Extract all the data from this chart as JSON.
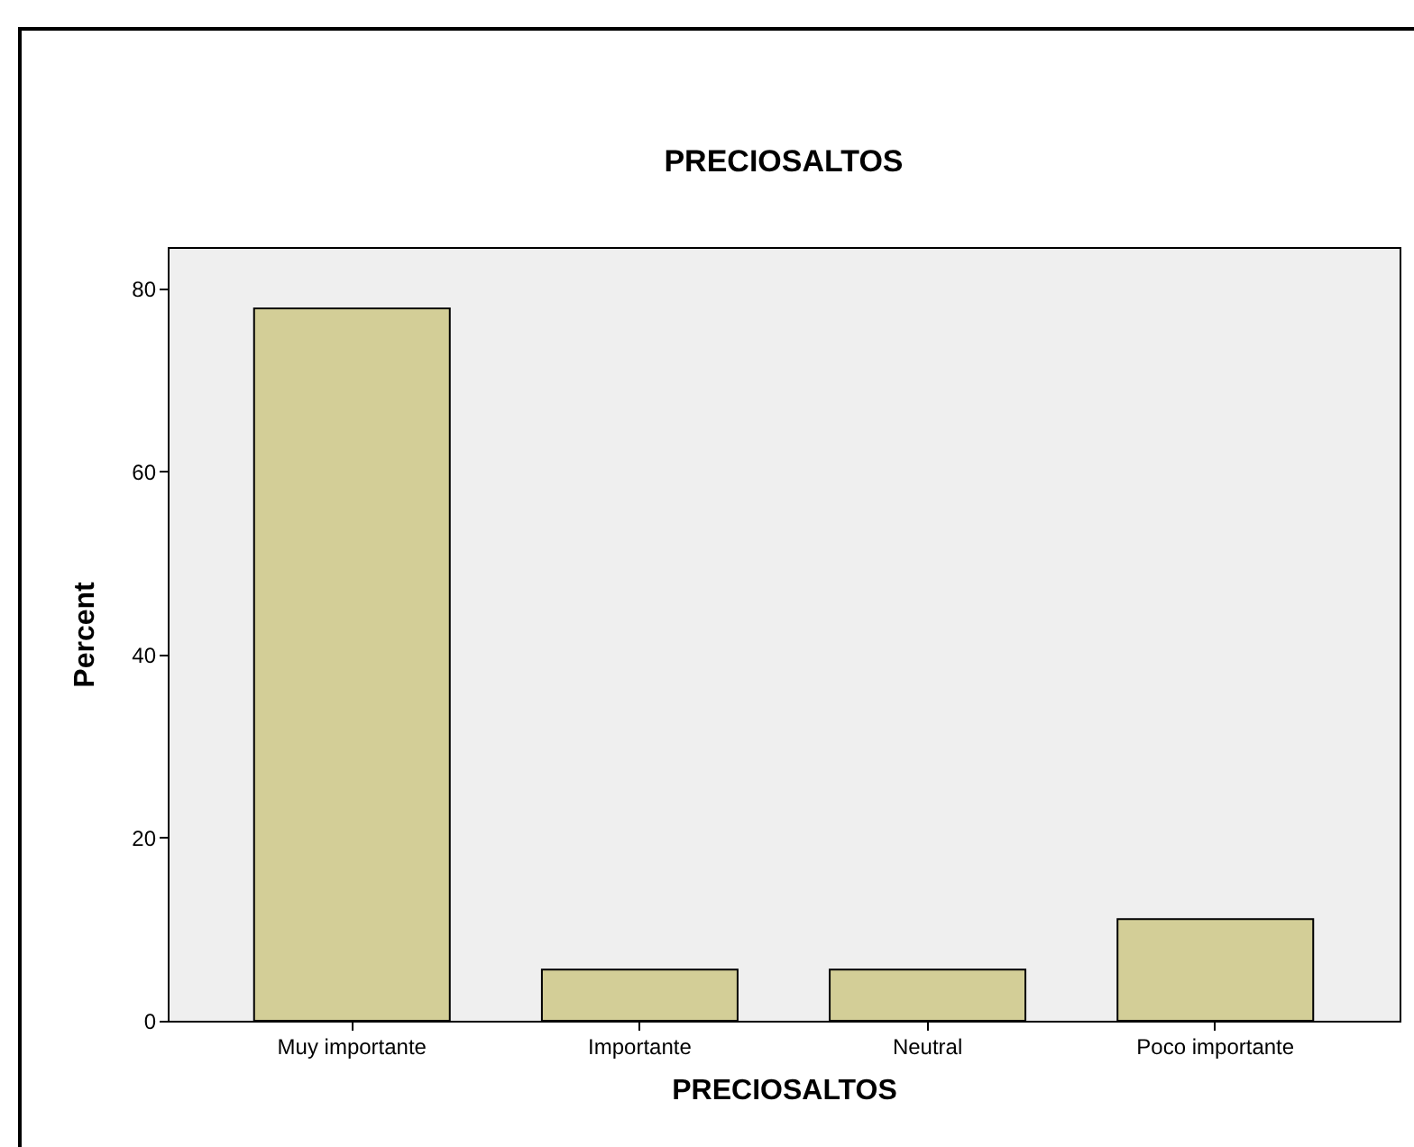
{
  "chart_data": {
    "type": "bar",
    "title": "PRECIOSALTOS",
    "xlabel": "PRECIOSALTOS",
    "ylabel": "Percent",
    "categories": [
      "Muy importante",
      "Importante",
      "Neutral",
      "Poco importante"
    ],
    "values": [
      77.8,
      5.6,
      5.6,
      11.1
    ],
    "color": "#d3ce97",
    "ylim": [
      0,
      84.5
    ],
    "yticks": [
      0,
      20,
      40,
      60,
      80
    ],
    "grid": false
  }
}
